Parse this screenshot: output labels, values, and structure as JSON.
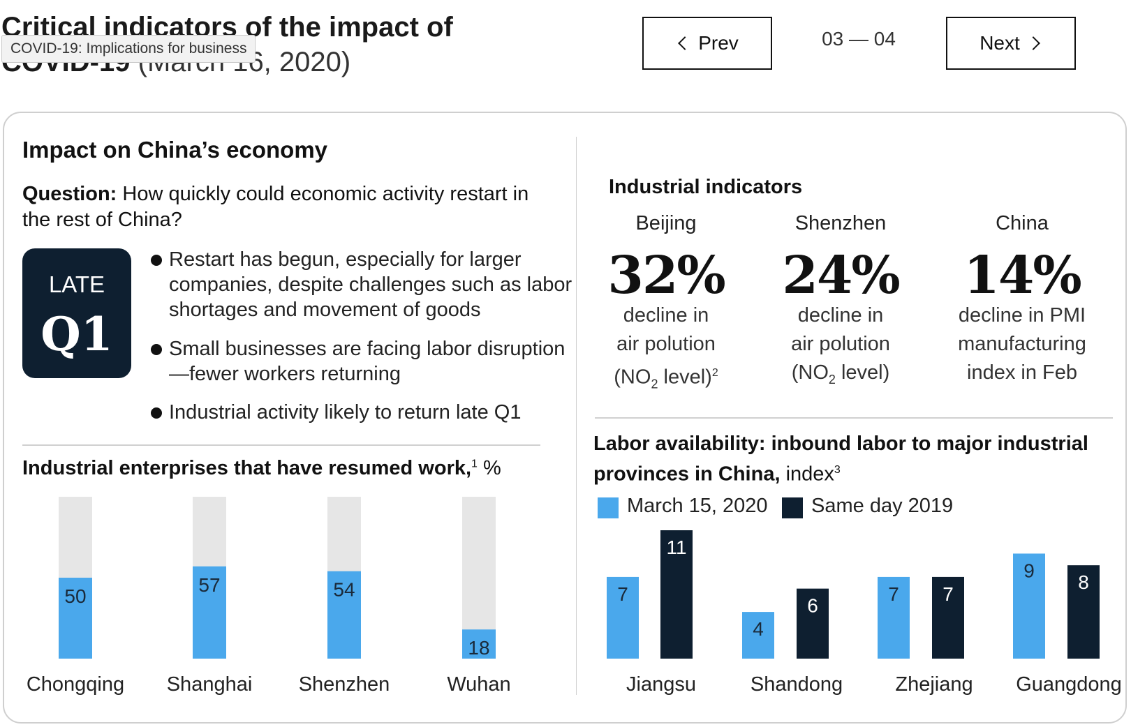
{
  "header": {
    "title_bold": "Critical indicators of the impact of COVID-19",
    "title_light": "(March 16, 2020)",
    "tooltip": "COVID-19: Implications for business",
    "prev_label": "Prev",
    "next_label": "Next",
    "pager": "03 — 04"
  },
  "impact": {
    "title": "Impact on China’s economy",
    "question_label": "Question:",
    "question_text": "How quickly could economic activity restart in the rest of China?",
    "late_label": "LATE",
    "q1_label": "Q1",
    "bullets": [
      "Restart has begun, especially for larger companies, despite challenges such as labor shortages and movement of goods",
      "Small businesses are facing labor disruption—fewer workers returning",
      "Industrial activity likely to return late Q1"
    ]
  },
  "left_chart": {
    "title_bold": "Industrial enterprises that have resumed work,",
    "footnote": "1",
    "unit": "%"
  },
  "industrial": {
    "title": "Industrial indicators",
    "items": [
      {
        "city": "Beijing",
        "pct": "32%",
        "line1": "decline in",
        "line2": "air polution",
        "line3_pre": "(NO",
        "line3_sub": "2",
        "line3_post": " level)",
        "footnote": "2"
      },
      {
        "city": "Shenzhen",
        "pct": "24%",
        "line1": "decline in",
        "line2": "air polution",
        "line3_pre": "(NO",
        "line3_sub": "2",
        "line3_post": " level)",
        "footnote": ""
      },
      {
        "city": "China",
        "pct": "14%",
        "line1": "decline in PMI",
        "line2": "manufacturing",
        "line3_pre": "index in Feb",
        "line3_sub": "",
        "line3_post": "",
        "footnote": ""
      }
    ]
  },
  "labor": {
    "title_bold": "Labor availability: inbound labor to major industrial provinces in China,",
    "title_light": "index",
    "footnote": "3",
    "legend": [
      "March 15, 2020",
      "Same day 2019"
    ]
  },
  "colors": {
    "blue": "#4aa8ec",
    "navy": "#0e1f30",
    "bar_bg": "#e6e6e6"
  },
  "chart_data": [
    {
      "type": "bar",
      "title": "Industrial enterprises that have resumed work, %",
      "categories": [
        "Chongqing",
        "Shanghai",
        "Shenzhen",
        "Wuhan"
      ],
      "values": [
        50,
        57,
        54,
        18
      ],
      "ylim": [
        0,
        100
      ]
    },
    {
      "type": "bar",
      "title": "Labor availability: inbound labor to major industrial provinces in China, index",
      "categories": [
        "Jiangsu",
        "Shandong",
        "Zhejiang",
        "Guangdong"
      ],
      "series": [
        {
          "name": "March 15, 2020",
          "values": [
            7,
            4,
            7,
            9
          ]
        },
        {
          "name": "Same day 2019",
          "values": [
            11,
            6,
            7,
            8
          ]
        }
      ],
      "ylim": [
        0,
        11
      ]
    }
  ]
}
